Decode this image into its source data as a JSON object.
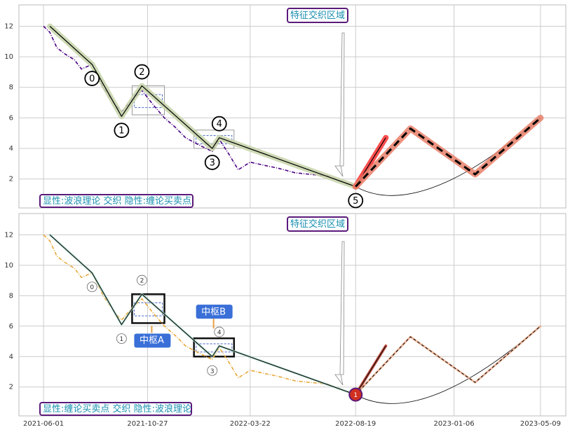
{
  "chart_data": [
    {
      "type": "line",
      "annotation": "特征交织区域",
      "caption": "显性:波浪理论 交织 隐性:缠论买卖点",
      "xlim": [
        "2021-04-27",
        "2023-06-14"
      ],
      "xticks": [
        "2021-06-01",
        "2021-10-27",
        "2022-03-22",
        "2022-08-19",
        "2023-01-06",
        "2023-05-09"
      ],
      "ylim": [
        0.1,
        13.4
      ],
      "yticks": [
        2,
        4,
        6,
        8,
        10,
        12
      ],
      "grid": true,
      "series": [
        {
          "color": "#4b0082",
          "width": 1.6,
          "dash": "5 2 1 2",
          "x": [
            "2021-06-01",
            "2021-06-10",
            "2021-06-20",
            "2021-07-01",
            "2021-07-15",
            "2021-07-25",
            "2021-08-09",
            "2021-08-25",
            "2021-09-10",
            "2021-09-20",
            "2021-10-05",
            "2021-10-19",
            "2021-11-05",
            "2021-11-20",
            "2021-12-05",
            "2021-12-20",
            "2022-01-05",
            "2022-01-27",
            "2022-02-06",
            "2022-02-20",
            "2022-03-05",
            "2022-03-22",
            "2022-04-10",
            "2022-05-01",
            "2022-05-25",
            "2022-06-15",
            "2022-07-10",
            "2022-08-01",
            "2022-08-19"
          ],
          "values": [
            12.0,
            11.6,
            10.6,
            10.2,
            9.8,
            9.2,
            9.5,
            8.0,
            6.9,
            6.4,
            7.2,
            7.8,
            6.8,
            6.0,
            5.4,
            4.7,
            4.3,
            3.8,
            4.6,
            3.6,
            2.6,
            3.1,
            2.9,
            2.7,
            2.4,
            2.3,
            2.2,
            1.8,
            1.5
          ]
        },
        {
          "color": "#000000",
          "width": 1.2,
          "halo": "#c5d3a8",
          "x": [
            "2021-06-10",
            "2021-08-09",
            "2021-09-20",
            "2021-10-19",
            "2022-01-27",
            "2022-02-06",
            "2022-08-19"
          ],
          "values": [
            12.0,
            9.5,
            6.1,
            8.1,
            4.0,
            4.7,
            1.5
          ],
          "labels": [
            null,
            "0",
            "1",
            "2",
            "3",
            "4",
            "5"
          ]
        },
        {
          "color": "#000000",
          "width": 1.2,
          "halo": "#ff3030",
          "x": [
            "2022-08-19",
            "2022-10-01"
          ],
          "values": [
            1.5,
            4.7
          ]
        },
        {
          "color": "#000000",
          "width": 3,
          "dash": "10 6",
          "halo": "#e8806a",
          "halo_width": 9,
          "x": [
            "2022-08-19",
            "2022-11-05",
            "2023-02-05",
            "2023-05-09"
          ],
          "values": [
            1.5,
            5.3,
            2.3,
            6.0
          ]
        }
      ],
      "boxes": [
        {
          "x": [
            "2021-10-05",
            "2021-11-20"
          ],
          "y": [
            6.2,
            8.1
          ],
          "color": "#999999",
          "width": 1
        },
        {
          "x": [
            "2022-01-01",
            "2022-02-27"
          ],
          "y": [
            4.0,
            5.2
          ],
          "color": "#999999",
          "width": 1
        }
      ]
    },
    {
      "type": "line",
      "annotation": "特征交织区域",
      "caption": "显性:缠论买卖点 交织 隐性:波浪理论",
      "box_labels": [
        "中枢A",
        "中枢B"
      ],
      "end_label": "1",
      "xlim": [
        "2021-04-27",
        "2023-06-14"
      ],
      "xticks": [
        "2021-06-01",
        "2021-10-27",
        "2022-03-22",
        "2022-08-19",
        "2023-01-06",
        "2023-05-09"
      ],
      "ylim": [
        0.1,
        13.4
      ],
      "yticks": [
        2,
        4,
        6,
        8,
        10,
        12
      ],
      "grid": true,
      "series": [
        {
          "color": "#e8a838",
          "width": 1.6,
          "dash": "5 2 1 2",
          "x": [
            "2021-06-01",
            "2021-06-10",
            "2021-06-20",
            "2021-07-01",
            "2021-07-15",
            "2021-07-25",
            "2021-08-09",
            "2021-08-25",
            "2021-09-10",
            "2021-09-20",
            "2021-10-05",
            "2021-10-19",
            "2021-11-05",
            "2021-11-20",
            "2021-12-05",
            "2021-12-20",
            "2022-01-05",
            "2022-01-27",
            "2022-02-06",
            "2022-02-20",
            "2022-03-05",
            "2022-03-22",
            "2022-04-10",
            "2022-05-01",
            "2022-05-25",
            "2022-06-15",
            "2022-07-10",
            "2022-08-01",
            "2022-08-19"
          ],
          "values": [
            12.0,
            11.6,
            10.6,
            10.2,
            9.8,
            9.2,
            9.5,
            8.0,
            6.9,
            6.4,
            7.2,
            7.8,
            6.8,
            6.0,
            5.4,
            4.7,
            4.3,
            3.8,
            4.6,
            3.6,
            2.6,
            3.1,
            2.9,
            2.7,
            2.4,
            2.3,
            2.2,
            1.8,
            1.5
          ]
        },
        {
          "color": "#000000",
          "width": 1,
          "halo": "#a8d8c8",
          "halo_width": 3,
          "x": [
            "2021-06-10",
            "2021-08-09",
            "2021-09-20",
            "2021-10-19",
            "2022-01-27",
            "2022-02-06",
            "2022-08-19"
          ],
          "values": [
            12.0,
            9.5,
            6.1,
            8.1,
            4.0,
            4.7,
            1.5
          ],
          "labels": [
            null,
            "0",
            "1",
            "2",
            "3",
            "4",
            null
          ]
        },
        {
          "color": "#000000",
          "width": 1,
          "halo": "#b03020",
          "halo_width": 4,
          "x": [
            "2022-08-19",
            "2022-10-01"
          ],
          "values": [
            1.5,
            4.7
          ]
        },
        {
          "color": "#000000",
          "width": 1,
          "dash": "4 3",
          "halo": "#f0b090",
          "halo_width": 3,
          "x": [
            "2022-08-19",
            "2022-11-05",
            "2023-02-05",
            "2023-05-09"
          ],
          "values": [
            1.5,
            5.3,
            2.3,
            6.0
          ]
        }
      ],
      "boxes": [
        {
          "x": [
            "2021-10-05",
            "2021-11-20"
          ],
          "y": [
            6.2,
            8.1
          ],
          "color": "#111111",
          "width": 2.5
        },
        {
          "x": [
            "2022-01-01",
            "2022-02-27"
          ],
          "y": [
            4.0,
            5.2
          ],
          "color": "#111111",
          "width": 2.5
        }
      ]
    }
  ]
}
